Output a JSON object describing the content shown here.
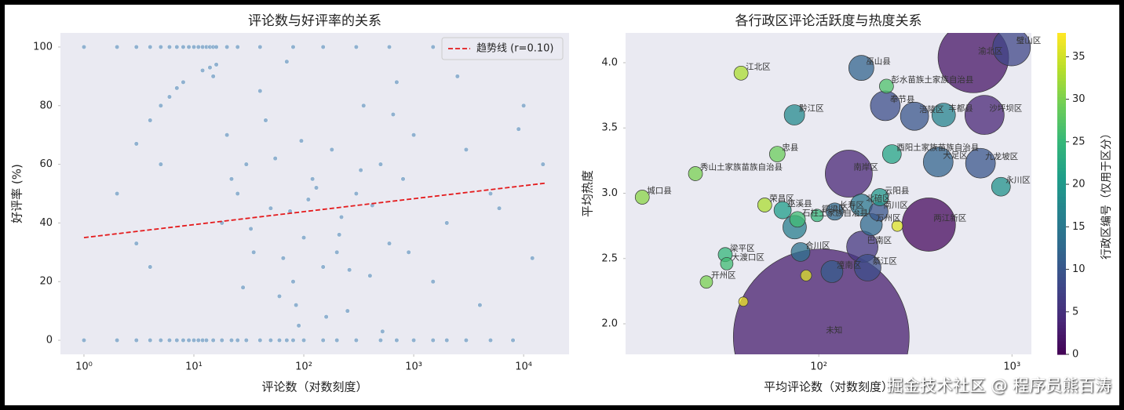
{
  "chart_data": [
    {
      "type": "scatter",
      "title": "评论数与好评率的关系",
      "xlabel": "评论数（对数刻度）",
      "ylabel": "好评率 (%)",
      "xlog": true,
      "grid": false,
      "legend": "upper right",
      "color": "#4682b4",
      "x": [
        1,
        2,
        3,
        4,
        5,
        6,
        7,
        8,
        9,
        10,
        11,
        12,
        13,
        14,
        15,
        16,
        20,
        25,
        40,
        80,
        150,
        300,
        600,
        1500,
        3000,
        5000,
        1,
        2,
        3,
        4,
        5,
        6,
        7,
        8,
        9,
        10,
        11,
        12,
        13,
        15,
        18,
        22,
        25,
        30,
        40,
        50,
        60,
        70,
        80,
        100,
        150,
        200,
        300,
        500,
        700,
        1000,
        1500,
        2000,
        3000,
        5000,
        8000,
        2,
        3,
        4,
        5,
        6,
        7,
        8,
        5,
        4,
        3,
        15,
        20,
        30,
        50,
        100,
        150,
        80,
        60,
        200,
        300,
        500,
        1000,
        2000,
        5000,
        10000,
        15000,
        12000,
        40,
        70,
        120,
        250,
        400,
        700,
        3000,
        1500,
        90,
        35,
        25,
        18,
        45,
        110,
        180,
        220,
        350,
        600,
        800,
        2500,
        4000,
        6000,
        9000,
        12,
        14,
        16,
        22,
        28,
        33,
        55,
        65,
        75,
        85,
        95,
        130,
        160,
        210,
        260,
        330,
        420,
        520,
        650,
        900
      ],
      "values": [
        100,
        100,
        100,
        100,
        100,
        100,
        100,
        100,
        100,
        100,
        100,
        100,
        100,
        100,
        100,
        100,
        100,
        100,
        100,
        100,
        100,
        100,
        100,
        100,
        100,
        100,
        0,
        0,
        0,
        0,
        0,
        0,
        0,
        0,
        0,
        0,
        0,
        0,
        0,
        0,
        0,
        0,
        0,
        0,
        0,
        0,
        0,
        0,
        0,
        0,
        0,
        0,
        0,
        0,
        0,
        0,
        0,
        0,
        0,
        0,
        0,
        50,
        67,
        75,
        80,
        83,
        86,
        88,
        60,
        25,
        33,
        90,
        70,
        60,
        45,
        35,
        25,
        20,
        15,
        30,
        50,
        60,
        70,
        40,
        50,
        80,
        60,
        28,
        85,
        95,
        55,
        10,
        22,
        88,
        65,
        20,
        5,
        30,
        50,
        40,
        75,
        48,
        65,
        42,
        80,
        33,
        55,
        90,
        12,
        45,
        72,
        92,
        93,
        94,
        55,
        18,
        38,
        62,
        28,
        44,
        12,
        68,
        52,
        8,
        36,
        24,
        58,
        46,
        3,
        77,
        30
      ],
      "trend": {
        "name": "趋势线 (r=0.10)",
        "color": "#e41a1c",
        "x": [
          1,
          16000
        ],
        "values": [
          35,
          53.6
        ]
      },
      "xlim": [
        0.611,
        25900
      ],
      "ylim": [
        -4.8,
        104.8
      ],
      "xticks": [
        {
          "value": 1,
          "label": "10⁰"
        },
        {
          "value": 10,
          "label": "10¹"
        },
        {
          "value": 100,
          "label": "10²"
        },
        {
          "value": 1000,
          "label": "10³"
        },
        {
          "value": 10000,
          "label": "10⁴"
        }
      ],
      "yticks": [
        0,
        20,
        40,
        60,
        80,
        100
      ]
    },
    {
      "type": "bubble",
      "title": "各行政区评论活跃度与热度关系",
      "xlabel": "平均评论数（对数刻度）",
      "ylabel": "平均热度",
      "xlog": true,
      "colormap": "viridis",
      "labels": [
        "未知",
        "渝北区",
        "两江新区",
        "南岸区",
        "沙坪坝区",
        "璧山区",
        "巴南区",
        "大足区",
        "九龙坡区",
        "奉节县",
        "涪陵区",
        "綦江区",
        "巫山县",
        "丰都县",
        "北碚区",
        "潼南区",
        "万州区",
        "黔江区",
        "酉阳土家族苗族自治县",
        "南川区",
        "合川区",
        "永川区",
        "云阳县",
        "巫溪县",
        "长寿区",
        null,
        "石柱土家族自治县",
        "忠县",
        "江北区",
        "彭水苗族土家族自治县",
        "秀山土家族苗族自治县",
        "城口县",
        "荣昌区",
        "梁平区",
        "大渡口区",
        "开州区",
        "铜梁区",
        null,
        null,
        null
      ],
      "x": [
        103,
        631,
        371,
        143,
        721,
        995,
        168,
        415,
        687,
        221,
        313,
        179,
        166,
        443,
        166,
        117,
        187,
        74.8,
        239,
        204,
        80.5,
        877,
        207,
        65,
        121,
        75,
        77.6,
        61,
        39.6,
        224,
        23,
        12.2,
        52.5,
        32.8,
        33.4,
        26.2,
        98,
        255,
        86,
        40.7
      ],
      "values": [
        1.9,
        4.04,
        2.76,
        3.15,
        3.6,
        4.12,
        2.59,
        3.24,
        3.23,
        3.67,
        3.59,
        2.43,
        3.96,
        3.6,
        2.91,
        2.4,
        2.76,
        3.6,
        3.3,
        2.86,
        2.55,
        3.05,
        2.97,
        2.87,
        2.86,
        2.74,
        2.8,
        3.3,
        3.92,
        3.82,
        3.15,
        2.97,
        2.91,
        2.53,
        2.46,
        2.32,
        2.83,
        2.75,
        2.37,
        2.17
      ],
      "sizes": [
        12544,
        2025,
        1156,
        900,
        625,
        576,
        400,
        361,
        361,
        361,
        324,
        289,
        256,
        225,
        196,
        196,
        196,
        169,
        144,
        144,
        144,
        144,
        121,
        121,
        121,
        225,
        100,
        100,
        81,
        81,
        81,
        81,
        81,
        81,
        64,
        64,
        64,
        49,
        49,
        36
      ],
      "color_values": [
        3,
        2,
        1,
        4,
        4,
        8,
        6,
        12,
        10,
        9,
        10,
        9,
        12,
        17,
        15,
        11,
        13,
        18,
        22,
        10,
        14,
        19,
        20,
        21,
        13,
        16,
        26,
        29,
        33,
        27,
        30,
        31,
        33,
        25,
        26,
        30,
        25,
        36,
        36,
        37
      ],
      "xlim": [
        10,
        1260
      ],
      "ylim": [
        1.766,
        4.228
      ],
      "xticks": [
        {
          "value": 100,
          "label": "10²"
        },
        {
          "value": 1000,
          "label": "10³"
        }
      ],
      "yticks": [
        {
          "value": 2,
          "label": "2.0"
        },
        2.5,
        {
          "value": 3,
          "label": "3.0"
        },
        3.5,
        {
          "value": 4,
          "label": "4.0"
        }
      ],
      "colorbar": {
        "label": "行政区编号（仅用于区分）",
        "lim": [
          0,
          37.8
        ],
        "ticks": [
          0,
          5,
          10,
          15,
          20,
          25,
          30,
          35
        ]
      }
    }
  ],
  "watermark": "掘金技术社区 @ 程序员熊百涛"
}
